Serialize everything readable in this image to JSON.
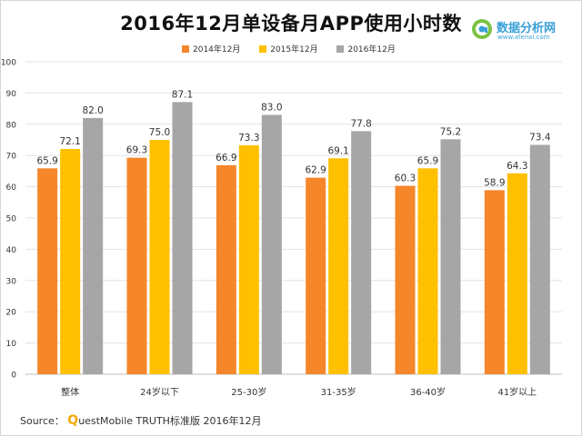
{
  "title": "2016年12月单设备月APP使用小时数",
  "logo": {
    "name": "数据分析网",
    "url": "www.afenxi.com",
    "color": "#3aa0d8"
  },
  "source": {
    "prefix": "Source：",
    "q_letter": "Q",
    "rest": "uestMobile TRUTH标准版 2016年12月"
  },
  "chart_data": {
    "type": "bar",
    "title": "2016年12月单设备月APP使用小时数",
    "xlabel": "",
    "ylabel": "",
    "ylim": [
      0,
      100
    ],
    "yticks": [
      0,
      10,
      20,
      30,
      40,
      50,
      60,
      70,
      80,
      90,
      100
    ],
    "grid": true,
    "legend_position": "top-center",
    "categories": [
      "整体",
      "24岁以下",
      "25-30岁",
      "31-35岁",
      "36-40岁",
      "41岁以上"
    ],
    "series": [
      {
        "name": "2014年12月",
        "color": "#f5862a",
        "values": [
          65.9,
          69.3,
          66.9,
          62.9,
          60.3,
          58.9
        ]
      },
      {
        "name": "2015年12月",
        "color": "#ffc000",
        "values": [
          72.1,
          75.0,
          73.3,
          69.1,
          65.9,
          64.3
        ]
      },
      {
        "name": "2016年12月",
        "color": "#a6a6a6",
        "values": [
          82.0,
          87.1,
          83.0,
          77.8,
          75.2,
          73.4
        ]
      }
    ]
  }
}
